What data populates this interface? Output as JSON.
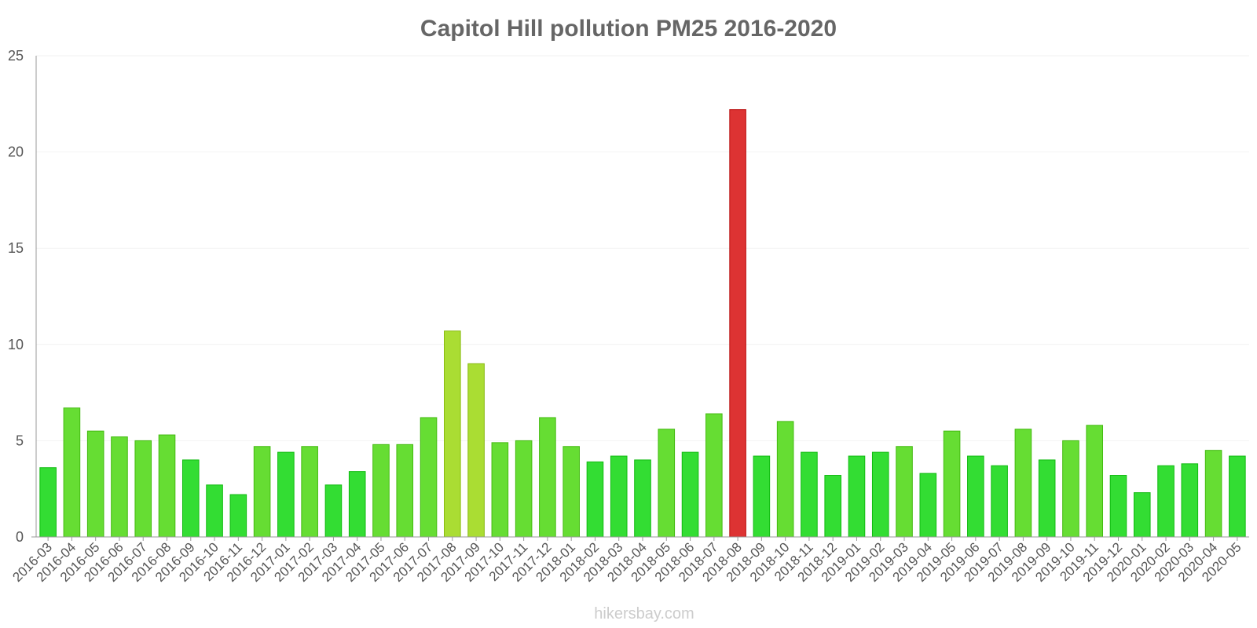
{
  "chart_data": {
    "type": "bar",
    "title": "Capitol Hill pollution PM25 2016-2020",
    "xlabel": "",
    "ylabel": "",
    "ylim": [
      0,
      25
    ],
    "yticks": [
      0,
      5,
      10,
      15,
      20,
      25
    ],
    "grid": true,
    "legend": "none",
    "categories": [
      "2016-03",
      "2016-04",
      "2016-05",
      "2016-06",
      "2016-07",
      "2016-08",
      "2016-09",
      "2016-10",
      "2016-11",
      "2016-12",
      "2017-01",
      "2017-02",
      "2017-03",
      "2017-04",
      "2017-05",
      "2017-06",
      "2017-07",
      "2017-08",
      "2017-09",
      "2017-10",
      "2017-11",
      "2017-12",
      "2018-01",
      "2018-02",
      "2018-03",
      "2018-04",
      "2018-05",
      "2018-06",
      "2018-07",
      "2018-08",
      "2018-09",
      "2018-10",
      "2018-11",
      "2018-12",
      "2019-01",
      "2019-02",
      "2019-03",
      "2019-04",
      "2019-05",
      "2019-06",
      "2019-07",
      "2019-08",
      "2019-09",
      "2019-10",
      "2019-11",
      "2019-12",
      "2020-01",
      "2020-02",
      "2020-03",
      "2020-04",
      "2020-05"
    ],
    "values": [
      3.6,
      6.7,
      5.5,
      5.2,
      5.0,
      5.3,
      4.0,
      2.7,
      2.2,
      4.7,
      4.4,
      4.7,
      2.7,
      3.4,
      4.8,
      4.8,
      6.2,
      10.7,
      9.0,
      4.9,
      5.0,
      6.2,
      4.7,
      3.9,
      4.2,
      4.0,
      5.6,
      4.4,
      6.4,
      22.2,
      4.2,
      6.0,
      4.4,
      3.2,
      4.2,
      4.4,
      4.7,
      3.3,
      5.5,
      4.2,
      3.7,
      5.6,
      4.0,
      5.0,
      5.8,
      3.2,
      2.3,
      3.7,
      3.8,
      4.5,
      4.2
    ],
    "color_scale": {
      "low": "#33dd33",
      "moderate": "#66dd33",
      "elevated": "#aadd33",
      "high": "#dd3333"
    },
    "thresholds": {
      "moderate": 4.5,
      "elevated": 9.0,
      "high": 15.0
    }
  },
  "watermark": "hikersbay.com"
}
